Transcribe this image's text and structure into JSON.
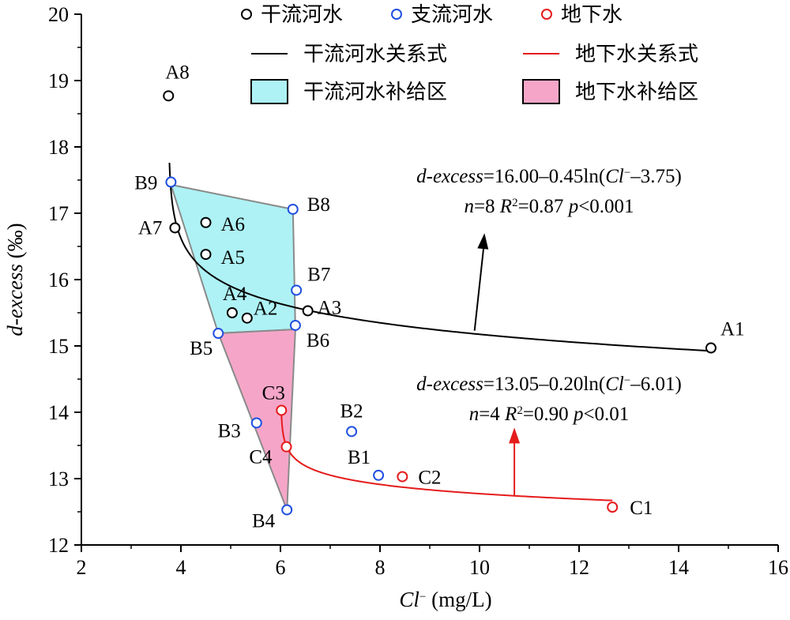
{
  "chart_data": {
    "type": "scatter",
    "xlabel": {
      "italic": "Cl",
      "sup": "−",
      "rest": " (mg/L)"
    },
    "ylabel": {
      "italic": "d-excess",
      "rest": " (‰)"
    },
    "xlim": [
      2,
      16
    ],
    "ylim": [
      12,
      20
    ],
    "xticks": [
      2,
      4,
      6,
      8,
      10,
      12,
      14,
      16
    ],
    "yticks": [
      12,
      13,
      14,
      15,
      16,
      17,
      18,
      19,
      20
    ],
    "grid": false,
    "legend_position": "top-right",
    "series": [
      {
        "name": "干流河水",
        "color": "#000000",
        "marker": "open-circle",
        "points": [
          {
            "label": "A1",
            "x": 14.65,
            "y": 14.97
          },
          {
            "label": "A2",
            "x": 5.33,
            "y": 15.42
          },
          {
            "label": "A3",
            "x": 6.55,
            "y": 15.53
          },
          {
            "label": "A4",
            "x": 5.03,
            "y": 15.5
          },
          {
            "label": "A5",
            "x": 4.5,
            "y": 16.38
          },
          {
            "label": "A6",
            "x": 4.5,
            "y": 16.86
          },
          {
            "label": "A7",
            "x": 3.88,
            "y": 16.78
          },
          {
            "label": "A8",
            "x": 3.75,
            "y": 18.77
          }
        ]
      },
      {
        "name": "支流河水",
        "color": "#1f4fe0",
        "marker": "open-circle",
        "points": [
          {
            "label": "B1",
            "x": 7.97,
            "y": 13.05
          },
          {
            "label": "B2",
            "x": 7.43,
            "y": 13.71
          },
          {
            "label": "B3",
            "x": 5.52,
            "y": 13.84
          },
          {
            "label": "B4",
            "x": 6.13,
            "y": 12.53
          },
          {
            "label": "B5",
            "x": 4.75,
            "y": 15.19
          },
          {
            "label": "B6",
            "x": 6.3,
            "y": 15.31
          },
          {
            "label": "B7",
            "x": 6.32,
            "y": 15.84
          },
          {
            "label": "B8",
            "x": 6.25,
            "y": 17.06
          },
          {
            "label": "B9",
            "x": 3.8,
            "y": 17.47
          }
        ]
      },
      {
        "name": "地下水",
        "color": "#e51b1b",
        "marker": "open-circle",
        "points": [
          {
            "label": "C1",
            "x": 12.67,
            "y": 12.57
          },
          {
            "label": "C2",
            "x": 8.45,
            "y": 13.03
          },
          {
            "label": "C3",
            "x": 6.02,
            "y": 14.03
          },
          {
            "label": "C4",
            "x": 6.12,
            "y": 13.48
          }
        ]
      }
    ],
    "fits": [
      {
        "name": "干流河水关系式",
        "color": "#000000",
        "equation": {
          "a": 16.0,
          "b": 0.45,
          "c": 3.75
        },
        "x_range": [
          3.77,
          14.65
        ]
      },
      {
        "name": "地下水关系式",
        "color": "#e51b1b",
        "equation": {
          "a": 13.05,
          "b": 0.2,
          "c": 6.01
        },
        "x_range": [
          6.02,
          12.67
        ]
      }
    ],
    "regions": [
      {
        "name": "干流河水补给区",
        "fill": "#aef2f5",
        "polygon": [
          [
            3.8,
            17.43
          ],
          [
            6.25,
            17.06
          ],
          [
            6.3,
            15.25
          ],
          [
            4.75,
            15.19
          ]
        ]
      },
      {
        "name": "地下水补给区",
        "fill": "#f5a6c8",
        "polygon": [
          [
            4.75,
            15.19
          ],
          [
            6.3,
            15.25
          ],
          [
            6.13,
            12.53
          ]
        ]
      }
    ],
    "annotations": [
      {
        "lines": [
          {
            "parts": [
              {
                "t": "d-excess",
                "i": true
              },
              {
                "t": "=16.00–0.45ln("
              },
              {
                "t": "Cl",
                "i": true
              },
              {
                "t": "−",
                "sup": true
              },
              {
                "t": "–3.75)"
              }
            ]
          },
          {
            "parts": [
              {
                "t": "n",
                "i": true
              },
              {
                "t": "=8 "
              },
              {
                "t": "R",
                "i": true
              },
              {
                "t": "2",
                "sup": true
              },
              {
                "t": "=0.87 "
              },
              {
                "t": "p",
                "i": true
              },
              {
                "t": "<0.001"
              }
            ]
          }
        ],
        "color": "#000000",
        "arrow_from": [
          9.9,
          15.23
        ],
        "arrow_to": [
          10.1,
          16.7
        ]
      },
      {
        "lines": [
          {
            "parts": [
              {
                "t": "d-excess",
                "i": true
              },
              {
                "t": "=13.05–0.20ln("
              },
              {
                "t": "Cl",
                "i": true
              },
              {
                "t": "−",
                "sup": true
              },
              {
                "t": "–6.01)"
              }
            ]
          },
          {
            "parts": [
              {
                "t": "n",
                "i": true
              },
              {
                "t": "=4 "
              },
              {
                "t": "R",
                "i": true
              },
              {
                "t": "2",
                "sup": true
              },
              {
                "t": "=0.90 "
              },
              {
                "t": "p",
                "i": true
              },
              {
                "t": "<0.01"
              }
            ]
          }
        ],
        "color": "#e51b1b",
        "arrow_from": [
          10.7,
          12.74
        ],
        "arrow_to": [
          10.7,
          13.77
        ]
      }
    ]
  }
}
